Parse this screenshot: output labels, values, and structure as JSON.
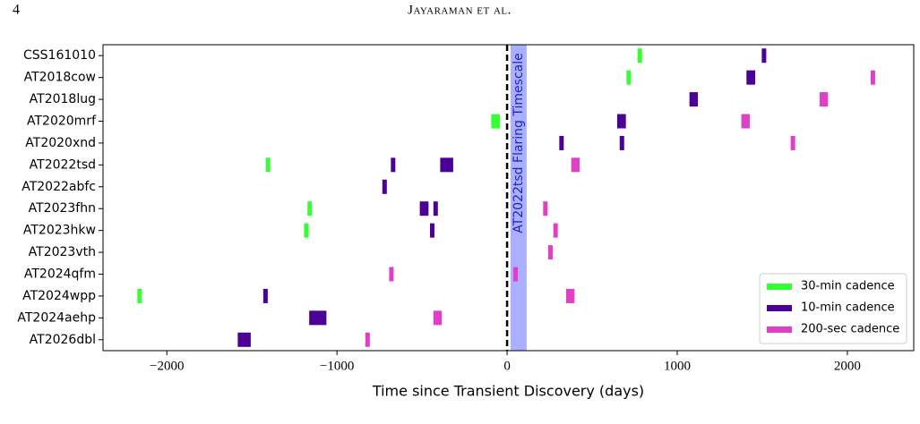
{
  "header": {
    "page": "4",
    "running_title": "Jayaraman et al."
  },
  "chart_data": {
    "type": "event",
    "xlabel": "Time since Transient Discovery (days)",
    "categories": [
      "CSS161010",
      "AT2018cow",
      "AT2018lug",
      "AT2020mrf",
      "AT2020xnd",
      "AT2022tsd",
      "AT2022abfc",
      "AT2023fhn",
      "AT2023hkw",
      "AT2023vth",
      "AT2024qfm",
      "AT2024wpp",
      "AT2024aehp",
      "AT2026dbl"
    ],
    "xlim": [
      -2375,
      2390
    ],
    "xticks": [
      {
        "value": -2000,
        "label": "−2000"
      },
      {
        "value": -1000,
        "label": "−1000"
      },
      0,
      1000,
      2000
    ],
    "vline": 0,
    "annotations": [
      {
        "text": "AT2022tsd Flaring Timescale",
        "xspan": [
          20,
          115
        ],
        "color": "#aab0ff"
      }
    ],
    "legend": "lower right",
    "series": [
      {
        "name": "30-min cadence",
        "color": "#33ff33",
        "y": [
          "CSS161010",
          "AT2018cow",
          "AT2020mrf",
          "AT2020mrf",
          "AT2022tsd",
          "AT2023fhn",
          "AT2023hkw",
          "AT2024wpp"
        ],
        "x": [
          780,
          715,
          -80,
          -55,
          -1405,
          -1160,
          -1180,
          -2160
        ]
      },
      {
        "name": "10-min cadence",
        "color": "#4b0096",
        "y": [
          "CSS161010",
          "AT2018cow",
          "AT2018cow",
          "AT2018lug",
          "AT2018lug",
          "AT2020mrf",
          "AT2020mrf",
          "AT2020xnd",
          "AT2020xnd",
          "AT2022tsd",
          "AT2022tsd",
          "AT2022tsd",
          "AT2022tsd",
          "AT2022abfc",
          "AT2023fhn",
          "AT2023fhn",
          "AT2023fhn",
          "AT2023hkw",
          "AT2024wpp",
          "AT2024aehp",
          "AT2024aehp",
          "AT2024aehp",
          "AT2024aehp",
          "AT2026dbl",
          "AT2026dbl",
          "AT2026dbl"
        ],
        "x": [
          1510,
          1420,
          1445,
          1085,
          1108,
          660,
          685,
          320,
          675,
          -670,
          -380,
          -355,
          -330,
          -720,
          -500,
          -475,
          -420,
          -440,
          -1420,
          -1150,
          -1125,
          -1100,
          -1075,
          -1570,
          -1545,
          -1520
        ]
      },
      {
        "name": "200-sec cadence",
        "color": "#e040c8",
        "y": [
          "AT2018cow",
          "AT2018lug",
          "AT2018lug",
          "AT2020mrf",
          "AT2020mrf",
          "AT2020xnd",
          "AT2022tsd",
          "AT2022tsd",
          "AT2023fhn",
          "AT2023hkw",
          "AT2023vth",
          "AT2024qfm",
          "AT2024qfm",
          "AT2024wpp",
          "AT2024wpp",
          "AT2024aehp",
          "AT2024aehp",
          "AT2026dbl"
        ],
        "x": [
          2150,
          1850,
          1873,
          1390,
          1413,
          1680,
          390,
          413,
          225,
          285,
          255,
          -680,
          50,
          360,
          383,
          -420,
          -397,
          -820
        ]
      }
    ]
  }
}
